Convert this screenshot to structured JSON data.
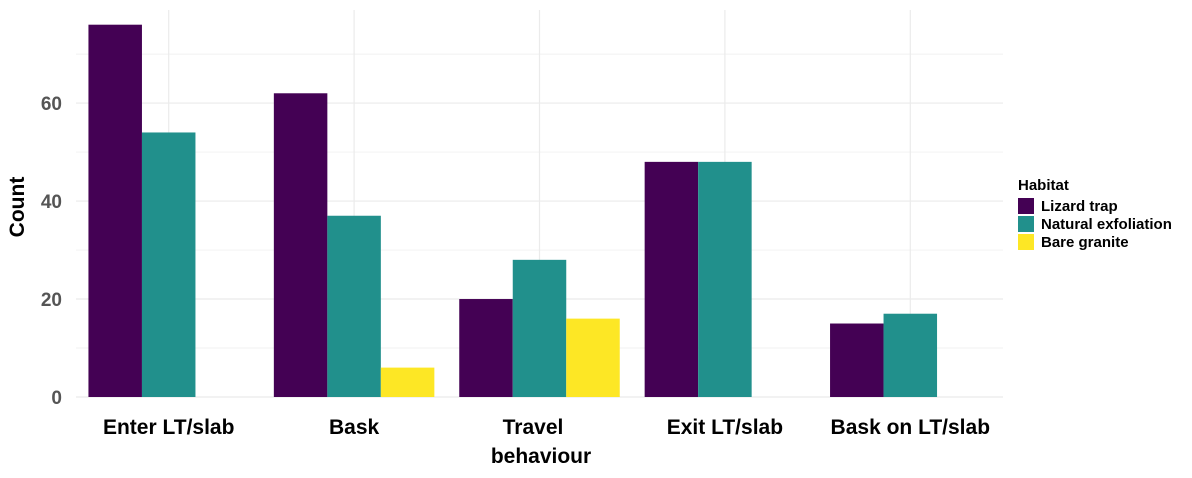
{
  "chart_data": {
    "type": "bar",
    "title": "",
    "xlabel": "behaviour",
    "xlabel_line1": "Travel",
    "ylabel": "Count",
    "categories": [
      "Enter LT/slab",
      "Bask",
      "Travel",
      "Exit LT/slab",
      "Bask on LT/slab"
    ],
    "category_labels_shown": [
      "Enter LT/slab",
      "Bask",
      "",
      "Exit LT/slab",
      "Bask on LT/slab"
    ],
    "series": [
      {
        "name": "Lizard trap",
        "color": "#440154",
        "values": [
          76,
          62,
          20,
          48,
          15
        ]
      },
      {
        "name": "Natural exfoliation",
        "color": "#21908C",
        "values": [
          54,
          37,
          28,
          48,
          17
        ]
      },
      {
        "name": "Bare granite",
        "color": "#FDE725",
        "values": [
          null,
          6,
          16,
          null,
          null
        ]
      }
    ],
    "ylim": [
      0,
      79
    ],
    "yticks": [
      0,
      20,
      40,
      60
    ],
    "grid": true,
    "legend": {
      "title": "Habitat",
      "position": "right"
    }
  }
}
